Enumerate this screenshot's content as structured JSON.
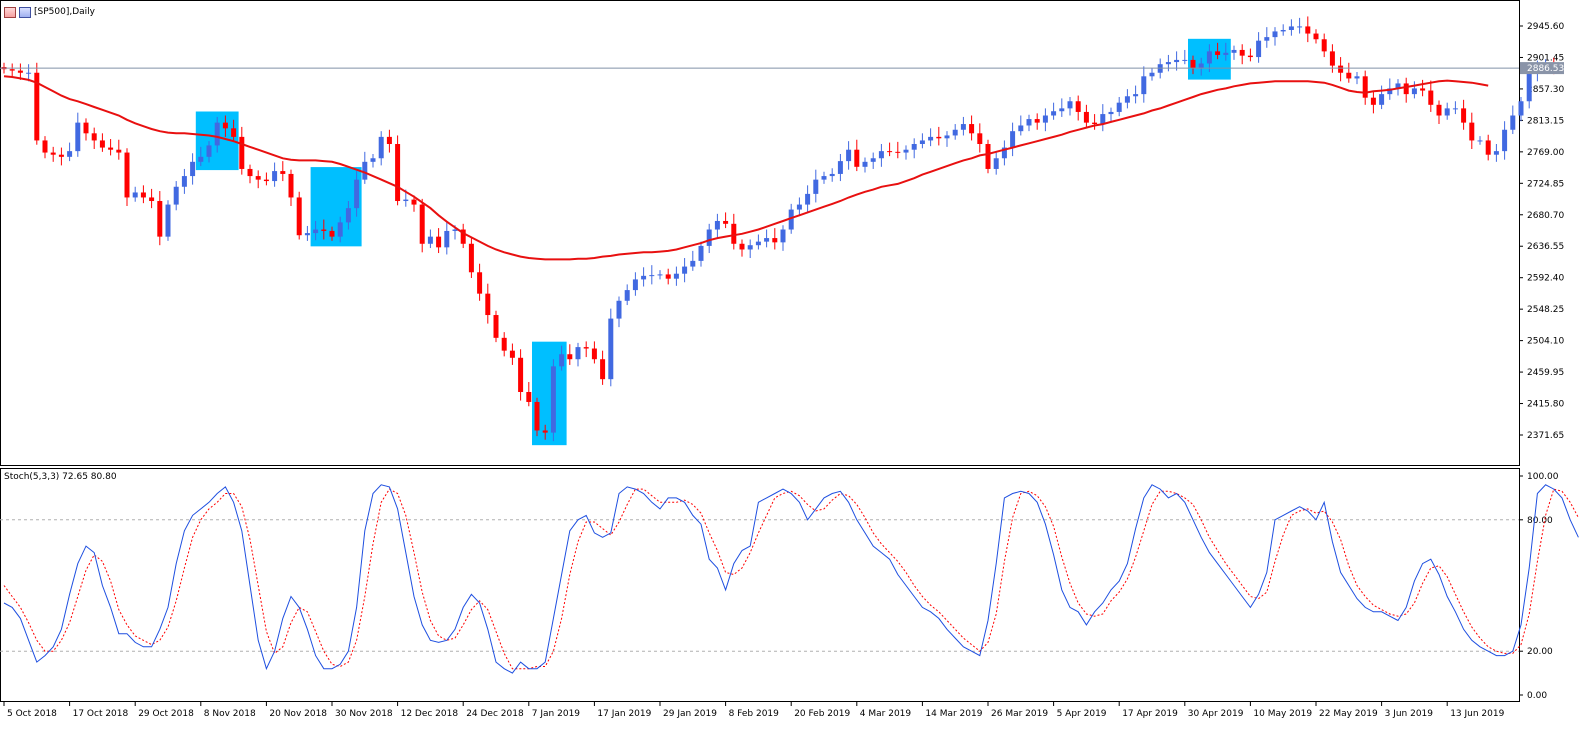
{
  "window": {
    "title": "[SP500],Daily",
    "icons": [
      "chart-window-icon",
      "symbol-icon"
    ]
  },
  "price_panel": {
    "current_price_label": "2886.53",
    "colors": {
      "bull": "#4169E1",
      "bear": "#FF0000",
      "ma": "#E81010",
      "highlight": "#00BFFF",
      "price_line": "#8090A8"
    }
  },
  "stoch_panel": {
    "label": "Stoch(5,3,3) 72.65 80.80",
    "colors": {
      "main": "#1E4FE0",
      "signal": "#FF0000"
    }
  },
  "chart_data": [
    {
      "type": "candlestick",
      "price_ticks": [
        "2945.60",
        "2901.45",
        "2857.30",
        "2813.15",
        "2769.00",
        "2724.85",
        "2680.70",
        "2636.55",
        "2592.40",
        "2548.25",
        "2504.10",
        "2459.95",
        "2415.80",
        "2371.65"
      ],
      "price_tick_values": [
        2945.6,
        2901.45,
        2857.3,
        2813.15,
        2769.0,
        2724.85,
        2680.7,
        2636.55,
        2592.4,
        2548.25,
        2504.1,
        2459.95,
        2415.8,
        2371.65
      ],
      "date_labels": [
        "5 Oct 2018",
        "17 Oct 2018",
        "29 Oct 2018",
        "8 Nov 2018",
        "20 Nov 2018",
        "30 Nov 2018",
        "12 Dec 2018",
        "24 Dec 2018",
        "7 Jan 2019",
        "17 Jan 2019",
        "29 Jan 2019",
        "8 Feb 2019",
        "20 Feb 2019",
        "4 Mar 2019",
        "14 Mar 2019",
        "26 Mar 2019",
        "5 Apr 2019",
        "17 Apr 2019",
        "30 Apr 2019",
        "10 May 2019",
        "22 May 2019",
        "3 Jun 2019",
        "13 Jun 2019"
      ],
      "date_label_index": [
        0,
        8,
        16,
        24,
        32,
        40,
        48,
        56,
        64,
        72,
        80,
        88,
        96,
        104,
        112,
        120,
        128,
        136,
        144,
        152,
        160,
        168,
        176
      ],
      "current_price": 2886.53,
      "close": [
        2885,
        2883,
        2880,
        2880,
        2785,
        2768,
        2765,
        2762,
        2770,
        2810,
        2795,
        2785,
        2775,
        2772,
        2768,
        2705,
        2712,
        2705,
        2700,
        2650,
        2695,
        2720,
        2735,
        2755,
        2762,
        2778,
        2810,
        2802,
        2790,
        2745,
        2735,
        2730,
        2728,
        2742,
        2738,
        2705,
        2652,
        2655,
        2660,
        2658,
        2650,
        2670,
        2690,
        2730,
        2755,
        2760,
        2790,
        2780,
        2700,
        2702,
        2695,
        2640,
        2650,
        2635,
        2658,
        2660,
        2640,
        2600,
        2570,
        2540,
        2508,
        2490,
        2480,
        2432,
        2418,
        2378,
        2375,
        2468,
        2485,
        2478,
        2495,
        2493,
        2478,
        2450,
        2535,
        2560,
        2575,
        2590,
        2595,
        2596,
        2597,
        2591,
        2598,
        2608,
        2616,
        2637,
        2660,
        2672,
        2668,
        2640,
        2632,
        2638,
        2643,
        2648,
        2642,
        2660,
        2688,
        2695,
        2710,
        2730,
        2735,
        2738,
        2756,
        2772,
        2748,
        2755,
        2760,
        2770,
        2769,
        2768,
        2772,
        2780,
        2785,
        2790,
        2788,
        2792,
        2800,
        2808,
        2795,
        2780,
        2745,
        2760,
        2775,
        2798,
        2806,
        2815,
        2810,
        2820,
        2826,
        2830,
        2840,
        2825,
        2810,
        2808,
        2822,
        2825,
        2838,
        2847,
        2850,
        2875,
        2880,
        2892,
        2895,
        2898,
        2898,
        2886,
        2893,
        2910,
        2905,
        2908,
        2912,
        2904,
        2902,
        2925,
        2930,
        2938,
        2940,
        2945,
        2945,
        2935,
        2927,
        2910,
        2890,
        2880,
        2872,
        2875,
        2845,
        2835,
        2850,
        2858,
        2865,
        2850,
        2858,
        2855,
        2835,
        2820,
        2830,
        2830,
        2810,
        2785,
        2785,
        2765,
        2770,
        2800,
        2820,
        2840,
        2880,
        2887,
        2887,
        2886
      ],
      "series": [
        {
          "name": "MA",
          "values": [
            2875,
            2874,
            2872,
            2870,
            2866,
            2860,
            2854,
            2848,
            2843,
            2840,
            2836,
            2832,
            2828,
            2824,
            2820,
            2814,
            2809,
            2805,
            2801,
            2798,
            2796,
            2795,
            2795,
            2794,
            2793,
            2792,
            2790,
            2787,
            2784,
            2780,
            2776,
            2772,
            2768,
            2764,
            2760,
            2758,
            2757,
            2757,
            2757,
            2756,
            2755,
            2752,
            2748,
            2744,
            2740,
            2735,
            2730,
            2725,
            2720,
            2713,
            2706,
            2698,
            2690,
            2680,
            2671,
            2663,
            2655,
            2649,
            2643,
            2637,
            2632,
            2628,
            2625,
            2622,
            2620,
            2619,
            2618,
            2618,
            2618,
            2618,
            2619,
            2619,
            2620,
            2622,
            2623,
            2625,
            2626,
            2627,
            2628,
            2628,
            2629,
            2630,
            2632,
            2635,
            2638,
            2641,
            2645,
            2648,
            2650,
            2652,
            2654,
            2657,
            2660,
            2664,
            2668,
            2672,
            2676,
            2680,
            2684,
            2688,
            2692,
            2696,
            2700,
            2705,
            2709,
            2713,
            2716,
            2720,
            2722,
            2724,
            2728,
            2732,
            2737,
            2741,
            2745,
            2749,
            2753,
            2757,
            2760,
            2764,
            2766,
            2769,
            2772,
            2775,
            2778,
            2781,
            2784,
            2787,
            2790,
            2793,
            2797,
            2800,
            2803,
            2806,
            2808,
            2811,
            2814,
            2817,
            2820,
            2823,
            2827,
            2830,
            2834,
            2838,
            2842,
            2846,
            2850,
            2853,
            2856,
            2858,
            2861,
            2863,
            2865,
            2866,
            2867,
            2868,
            2868,
            2868,
            2868,
            2868,
            2867,
            2866,
            2863,
            2859,
            2855,
            2853,
            2852,
            2854,
            2855,
            2856,
            2858,
            2860,
            2862,
            2864,
            2866,
            2868,
            2869,
            2868,
            2867,
            2866,
            2864,
            2862
          ]
        }
      ]
    },
    {
      "type": "line",
      "title": "Stoch(5,3,3) 72.65 80.80",
      "ylim": [
        0,
        100
      ],
      "y_ticks": [
        "100.00",
        "80.00",
        "20.00",
        "0.00"
      ],
      "y_tick_values": [
        100,
        80,
        20,
        0
      ],
      "levels": [
        80,
        20
      ],
      "series": [
        {
          "name": "Main",
          "values": [
            42,
            40,
            35,
            25,
            15,
            18,
            22,
            30,
            46,
            60,
            68,
            65,
            50,
            40,
            28,
            28,
            24,
            22,
            22,
            30,
            40,
            60,
            75,
            82,
            85,
            88,
            92,
            95,
            88,
            75,
            50,
            25,
            12,
            20,
            35,
            45,
            40,
            30,
            18,
            12,
            12,
            14,
            20,
            40,
            75,
            92,
            96,
            95,
            85,
            65,
            45,
            32,
            25,
            24,
            25,
            30,
            40,
            46,
            42,
            30,
            15,
            12,
            10,
            15,
            12,
            12,
            15,
            35,
            55,
            75,
            80,
            82,
            74,
            72,
            74,
            92,
            95,
            94,
            92,
            88,
            85,
            90,
            90,
            88,
            82,
            78,
            62,
            58,
            48,
            60,
            66,
            68,
            88,
            90,
            92,
            94,
            92,
            88,
            80,
            85,
            90,
            92,
            93,
            88,
            80,
            74,
            68,
            65,
            62,
            55,
            50,
            45,
            40,
            38,
            35,
            30,
            26,
            22,
            20,
            18,
            34,
            60,
            90,
            92,
            93,
            92,
            88,
            78,
            64,
            48,
            40,
            38,
            32,
            38,
            42,
            48,
            52,
            60,
            76,
            90,
            96,
            94,
            90,
            92,
            88,
            80,
            72,
            65,
            60,
            55,
            50,
            45,
            40,
            46,
            56,
            80,
            82,
            84,
            86,
            84,
            80,
            88,
            70,
            56,
            50,
            44,
            40,
            38,
            38,
            36,
            34,
            40,
            52,
            60,
            62,
            55,
            45,
            38,
            30,
            25,
            22,
            20,
            18,
            18,
            20,
            32,
            58,
            92,
            96,
            94,
            90,
            80,
            72
          ]
        },
        {
          "name": "Signal",
          "values": [
            50,
            45,
            40,
            33,
            25,
            20,
            20,
            25,
            33,
            45,
            57,
            64,
            61,
            52,
            39,
            32,
            27,
            25,
            23,
            25,
            31,
            43,
            58,
            72,
            80,
            85,
            88,
            92,
            92,
            86,
            71,
            50,
            29,
            19,
            22,
            33,
            40,
            38,
            29,
            20,
            14,
            13,
            15,
            25,
            45,
            69,
            88,
            94,
            92,
            82,
            65,
            47,
            34,
            27,
            25,
            26,
            32,
            39,
            43,
            39,
            29,
            19,
            12,
            12,
            12,
            13,
            13,
            20,
            35,
            55,
            70,
            79,
            79,
            76,
            73,
            79,
            87,
            94,
            94,
            91,
            88,
            88,
            88,
            89,
            87,
            83,
            74,
            66,
            56,
            55,
            58,
            65,
            74,
            82,
            90,
            92,
            93,
            91,
            87,
            84,
            85,
            89,
            92,
            91,
            87,
            81,
            74,
            69,
            65,
            61,
            56,
            50,
            45,
            41,
            38,
            34,
            30,
            26,
            23,
            20,
            24,
            37,
            61,
            81,
            92,
            93,
            91,
            86,
            77,
            63,
            51,
            42,
            37,
            36,
            37,
            43,
            47,
            53,
            63,
            75,
            87,
            93,
            93,
            92,
            90,
            87,
            80,
            72,
            66,
            60,
            55,
            50,
            45,
            44,
            47,
            61,
            73,
            82,
            84,
            85,
            83,
            84,
            79,
            71,
            59,
            50,
            45,
            41,
            39,
            37,
            36,
            37,
            42,
            51,
            58,
            59,
            54,
            46,
            38,
            31,
            26,
            22,
            20,
            19,
            19,
            23,
            37,
            61,
            82,
            94,
            93,
            88,
            81
          ]
        }
      ]
    }
  ]
}
